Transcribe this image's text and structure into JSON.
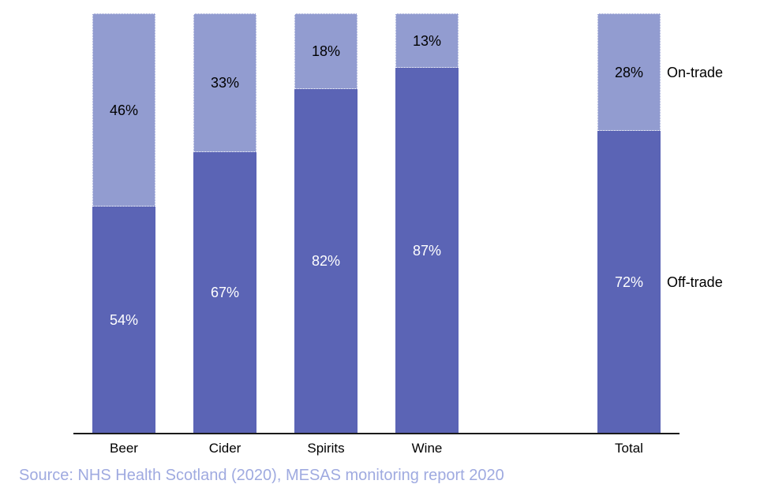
{
  "chart_data": {
    "type": "bar",
    "stacked": true,
    "orientation": "vertical",
    "title": "",
    "xlabel": "",
    "ylabel": "",
    "ylim": [
      0,
      100
    ],
    "grid": false,
    "categories": [
      "Beer",
      "Cider",
      "Spirits",
      "Wine",
      "Total"
    ],
    "series": [
      {
        "name": "Off-trade",
        "values": [
          54,
          67,
          82,
          87,
          72
        ],
        "color": "#5b64b5",
        "label_color": "#ffffff"
      },
      {
        "name": "On-trade",
        "values": [
          46,
          33,
          18,
          13,
          28
        ],
        "color": "#929cd0",
        "label_color": "#000000"
      }
    ],
    "value_suffix": "%",
    "legend_position": "right-of-last-bar",
    "slot_indices": [
      0,
      1,
      2,
      3,
      5
    ],
    "axis_color": "#1a1a1a"
  },
  "source": {
    "text": "Source: NHS Health Scotland (2020), MESAS monitoring report 2020",
    "color": "#9faae0"
  }
}
